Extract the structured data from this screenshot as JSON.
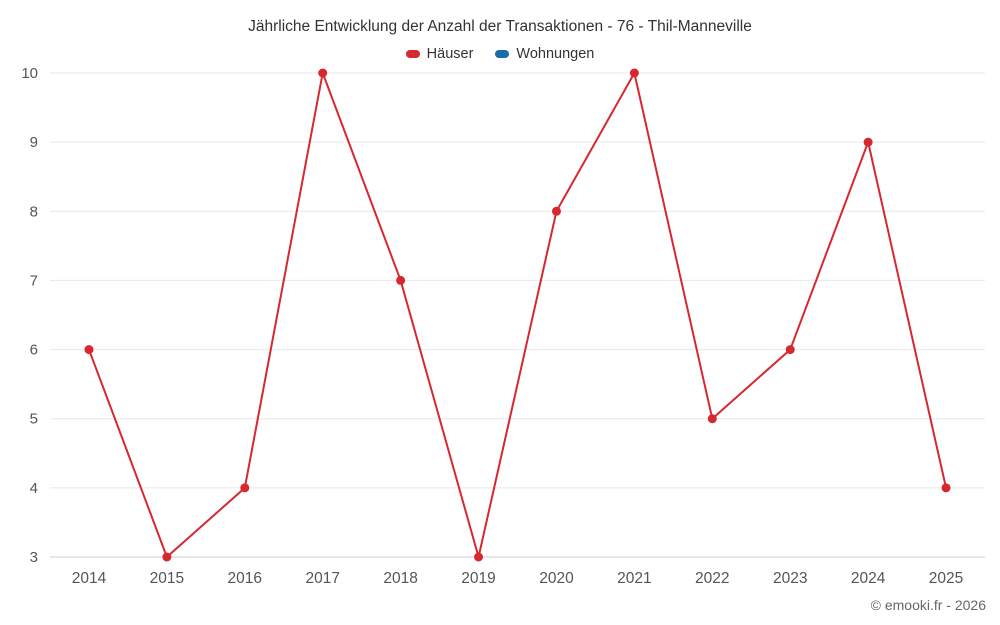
{
  "title": "Jährliche Entwicklung der Anzahl der Transaktionen - 76 - Thil-Manneville",
  "footer": "© emooki.fr - 2026",
  "legend": {
    "items": [
      {
        "label": "Häuser",
        "color": "#d7282f"
      },
      {
        "label": "Wohnungen",
        "color": "#1a6da8"
      }
    ]
  },
  "colors": {
    "grid_line": "#e8e8e8",
    "axis_line": "#cccccc",
    "tick_label": "#555555",
    "title_text": "#333333",
    "footer_text": "#666666"
  },
  "chart_data": {
    "type": "line",
    "title": "Jährliche Entwicklung der Anzahl der Transaktionen - 76 - Thil-Manneville",
    "categories": [
      "2014",
      "2015",
      "2016",
      "2017",
      "2018",
      "2019",
      "2020",
      "2021",
      "2022",
      "2023",
      "2024",
      "2025"
    ],
    "series": [
      {
        "name": "Häuser",
        "color": "#d7282f",
        "values": [
          6,
          3,
          4,
          10,
          7,
          3,
          8,
          10,
          5,
          6,
          9,
          4
        ]
      },
      {
        "name": "Wohnungen",
        "color": "#1a6da8",
        "values": []
      }
    ],
    "xlabel": "",
    "ylabel": "",
    "ylim": [
      3,
      10
    ],
    "ytick_step": 1,
    "grid": "horizontal",
    "legend_position": "top",
    "marker_radius": 4.5,
    "line_width": 2
  }
}
